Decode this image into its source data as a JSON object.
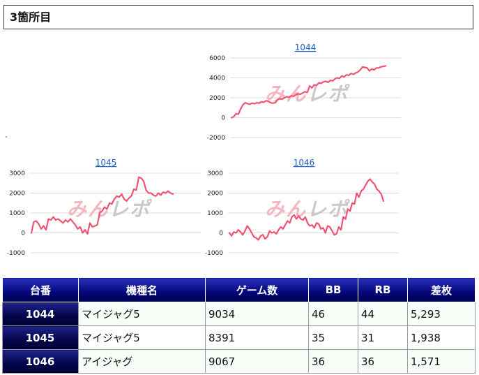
{
  "section": {
    "title": "3箇所目"
  },
  "charts": [
    {
      "id": "1044",
      "title": "1044",
      "watermark": "みんレポ",
      "y_ticks": [
        "6000",
        "4000",
        "2000",
        "0",
        "-2000"
      ],
      "chart_data": {
        "type": "line",
        "title": "1044",
        "ylim": [
          -2000,
          6000
        ],
        "grid": true,
        "series": [
          {
            "values": [
              0,
              100,
              400,
              350,
              900,
              1300,
              1500,
              1400,
              1350,
              1450,
              1400,
              1500,
              1450,
              1600,
              1550,
              1700,
              1650,
              1500,
              1450,
              1500,
              1800,
              1900,
              1850,
              2000,
              2100,
              2050,
              2200,
              2150,
              2300,
              2400,
              2350,
              2500,
              2600,
              2550,
              3200,
              3000,
              3300,
              3250,
              3500,
              3450,
              3600,
              3650,
              3550,
              3750,
              3700,
              3900,
              4000,
              3950,
              4200,
              4100,
              4300,
              4250,
              4450,
              4350,
              4500,
              4600,
              4800,
              5100,
              5050,
              5000,
              4700,
              4900,
              4800,
              5000,
              5000,
              5100,
              5150,
              5200
            ]
          }
        ]
      }
    },
    {
      "id": "1045",
      "title": "1045",
      "watermark": "みんレポ",
      "y_ticks": [
        "3000",
        "2000",
        "1000",
        "0",
        "-1000"
      ],
      "chart_data": {
        "type": "line",
        "title": "1045",
        "ylim": [
          -1000,
          3000
        ],
        "grid": true,
        "series": [
          {
            "values": [
              0,
              550,
              600,
              450,
              200,
              350,
              150,
              700,
              650,
              800,
              650,
              700,
              600,
              500,
              650,
              550,
              700,
              550,
              400,
              200,
              300,
              0,
              150,
              -50,
              500,
              300,
              350,
              400,
              1000,
              1100,
              1300,
              1200,
              1500,
              1450,
              1700,
              1850,
              1800,
              1950,
              1700,
              1600,
              1750,
              1850,
              2200,
              2150,
              2800,
              2750,
              2600,
              2150,
              2000,
              2000,
              1900,
              1850,
              2000,
              1900,
              2050,
              2000,
              2100,
              2000,
              1950
            ]
          }
        ]
      }
    },
    {
      "id": "1046",
      "title": "1046",
      "watermark": "みんレポ",
      "y_ticks": [
        "3000",
        "2000",
        "1000",
        "0",
        "-1000"
      ],
      "chart_data": {
        "type": "line",
        "title": "1046",
        "ylim": [
          -1000,
          3000
        ],
        "grid": true,
        "series": [
          {
            "values": [
              0,
              -150,
              50,
              0,
              150,
              50,
              -100,
              100,
              350,
              200,
              0,
              -200,
              -250,
              -350,
              -150,
              -100,
              -300,
              -200,
              100,
              0,
              50,
              -50,
              150,
              300,
              200,
              400,
              600,
              500,
              800,
              900,
              700,
              850,
              700,
              650,
              800,
              500,
              350,
              400,
              250,
              500,
              450,
              200,
              250,
              0,
              350,
              300,
              100,
              -100,
              -50,
              300,
              150,
              800,
              700,
              1200,
              1100,
              1500,
              1450,
              2000,
              1800,
              2100,
              2200,
              2400,
              2600,
              2700,
              2550,
              2450,
              2200,
              2100,
              1950,
              1600
            ]
          }
        ]
      }
    }
  ],
  "table": {
    "headers": [
      "台番",
      "機種名",
      "ゲーム数",
      "BB",
      "RB",
      "差枚"
    ],
    "rows": [
      [
        "1044",
        "マイジャグ5",
        "9034",
        "46",
        "44",
        "5,293"
      ],
      [
        "1045",
        "マイジャグ5",
        "8391",
        "35",
        "31",
        "1,938"
      ],
      [
        "1046",
        "アイジャグ",
        "9067",
        "36",
        "36",
        "1,571"
      ]
    ]
  },
  "colors": {
    "line": "#ef5473",
    "header_bg": "#03067a",
    "watermark_a": "#f4b6c1",
    "watermark_b": "#c9c9c9"
  }
}
